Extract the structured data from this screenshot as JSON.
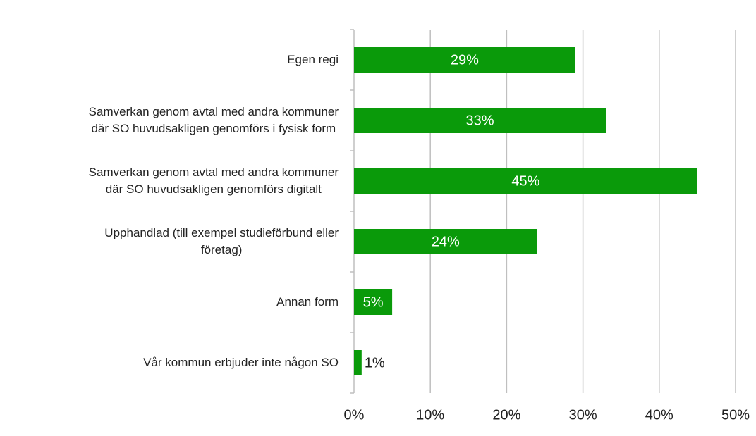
{
  "chart_data": {
    "type": "barh",
    "categories": [
      "Egen regi",
      "Samverkan genom avtal med andra kommuner\ndär SO huvudsakligen genomförs i fysisk form",
      "Samverkan genom avtal med andra kommuner\ndär SO huvudsakligen genomförs digitalt",
      "Upphandlad (till exempel studieförbund eller\nföretag)",
      "Annan form",
      "Vår kommun erbjuder inte någon SO"
    ],
    "values": [
      29,
      33,
      45,
      24,
      5,
      1
    ],
    "value_labels": [
      "29%",
      "33%",
      "45%",
      "24%",
      "5%",
      "1%"
    ],
    "color": "#0a9a0a",
    "xlim": [
      0,
      50
    ],
    "xticks": [
      {
        "value": 0,
        "label": "0%"
      },
      {
        "value": 10,
        "label": "10%"
      },
      {
        "value": 20,
        "label": "20%"
      },
      {
        "value": 30,
        "label": "30%"
      },
      {
        "value": 40,
        "label": "40%"
      },
      {
        "value": 50,
        "label": "50%"
      }
    ],
    "grid": true
  }
}
